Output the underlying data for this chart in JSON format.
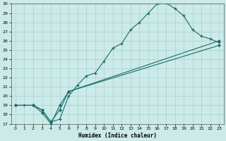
{
  "xlabel": "Humidex (Indice chaleur)",
  "bg_color": "#cceae7",
  "line_color": "#1a6b6b",
  "xlim": [
    -0.5,
    23.5
  ],
  "ylim": [
    17,
    30
  ],
  "xticks": [
    0,
    1,
    2,
    3,
    4,
    5,
    6,
    7,
    8,
    9,
    10,
    11,
    12,
    13,
    14,
    15,
    16,
    17,
    18,
    19,
    20,
    21,
    22,
    23
  ],
  "yticks": [
    17,
    18,
    19,
    20,
    21,
    22,
    23,
    24,
    25,
    26,
    27,
    28,
    29,
    30
  ],
  "line1_x": [
    0,
    1,
    2,
    3,
    4,
    5,
    6,
    7,
    8,
    9,
    10,
    11,
    12,
    13,
    14,
    15,
    16,
    17,
    18,
    19,
    20,
    21,
    22,
    23
  ],
  "line1_y": [
    19.0,
    19.0,
    19.0,
    18.5,
    17.2,
    17.5,
    20.0,
    21.2,
    22.2,
    22.5,
    23.8,
    25.2,
    25.7,
    27.2,
    28.0,
    29.0,
    30.0,
    30.1,
    29.5,
    28.7,
    27.2,
    26.5,
    26.2,
    25.8
  ],
  "line2_x": [
    0,
    2,
    3,
    4,
    5,
    6,
    23
  ],
  "line2_y": [
    19.0,
    19.0,
    18.5,
    17.2,
    18.5,
    20.5,
    26.0
  ],
  "line3_x": [
    0,
    2,
    3,
    4,
    5,
    6,
    23
  ],
  "line3_y": [
    19.0,
    19.0,
    18.2,
    17.0,
    19.0,
    20.5,
    25.5
  ]
}
